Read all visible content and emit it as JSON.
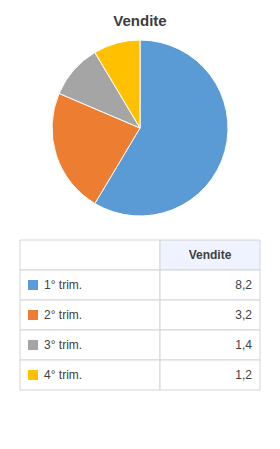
{
  "chart_data": {
    "type": "pie",
    "title": "Vendite",
    "categories": [
      "1° trim.",
      "2° trim.",
      "3° trim.",
      "4° trim."
    ],
    "values": [
      8.2,
      3.2,
      1.4,
      1.2
    ],
    "value_labels": [
      "8,2",
      "3,2",
      "1,4",
      "1,2"
    ],
    "colors": [
      "#5B9BD5",
      "#ED7D31",
      "#A5A5A5",
      "#FFC000"
    ]
  }
}
